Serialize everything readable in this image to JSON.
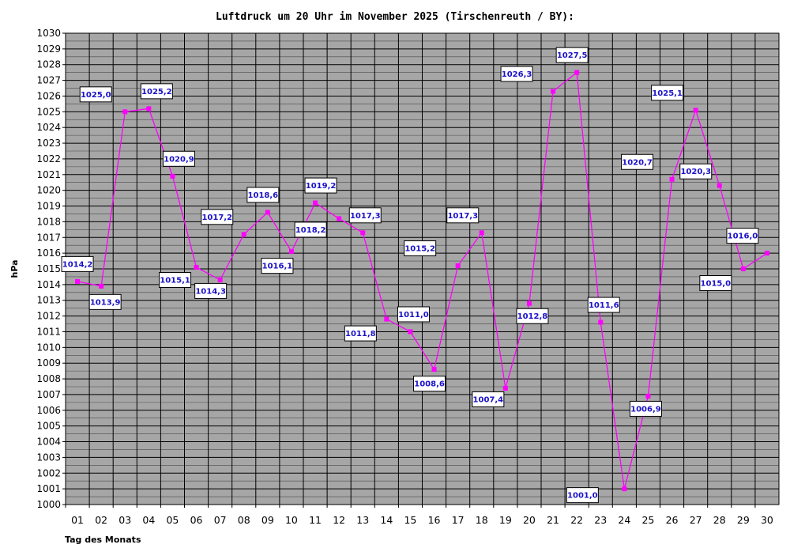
{
  "chart_data": {
    "type": "line",
    "title": "Luftdruck um 20 Uhr im November 2025 (Tirschenreuth / BY):",
    "xlabel": "Tag des Monats",
    "ylabel": "hPa",
    "ylim": [
      1000,
      1030
    ],
    "y_ticks": [
      "1000",
      "1001",
      "1002",
      "1003",
      "1004",
      "1005",
      "1006",
      "1007",
      "1008",
      "1009",
      "1010",
      "1011",
      "1012",
      "1013",
      "1014",
      "1015",
      "1016",
      "1017",
      "1018",
      "1019",
      "1020",
      "1021",
      "1022",
      "1023",
      "1024",
      "1025",
      "1026",
      "1027",
      "1028",
      "1029",
      "1030"
    ],
    "grid": true,
    "categories": [
      "01",
      "02",
      "03",
      "04",
      "05",
      "06",
      "07",
      "08",
      "09",
      "10",
      "11",
      "12",
      "13",
      "14",
      "15",
      "16",
      "17",
      "18",
      "19",
      "20",
      "21",
      "22",
      "23",
      "24",
      "25",
      "26",
      "27",
      "28",
      "29",
      "30"
    ],
    "series": [
      {
        "color": "#ff00ff",
        "values": [
          1014.2,
          1013.9,
          1025.0,
          1025.2,
          1020.9,
          1015.1,
          1014.3,
          1017.2,
          1018.6,
          1016.1,
          1019.2,
          1018.2,
          1017.3,
          1011.8,
          1011.0,
          1008.6,
          1015.2,
          1017.3,
          1007.4,
          1012.8,
          1026.3,
          1027.5,
          1011.6,
          1001.0,
          1006.9,
          1020.7,
          1025.1,
          1020.3,
          1015.0,
          1016.0
        ],
        "labels": [
          "1014,2",
          "1013,9",
          "1025,0",
          "1025,2",
          "1020,9",
          "1015,1",
          "1014,3",
          "1017,2",
          "1018,6",
          "1016,1",
          "1019,2",
          "1018,2",
          "1017,3",
          "1011,8",
          "1011,0",
          "1008,6",
          "1015,2",
          "1017,3",
          "1007,4",
          "1012,8",
          "1026,3",
          "1027,5",
          "1011,6",
          "1001,0",
          "1006,9",
          "1020,7",
          "1025,1",
          "1020,3",
          "1015,0",
          "1016,0"
        ]
      }
    ],
    "colors": {
      "plot_background": "#a6a6a6",
      "grid": "#000000",
      "label_text": "#1a12c8"
    }
  }
}
